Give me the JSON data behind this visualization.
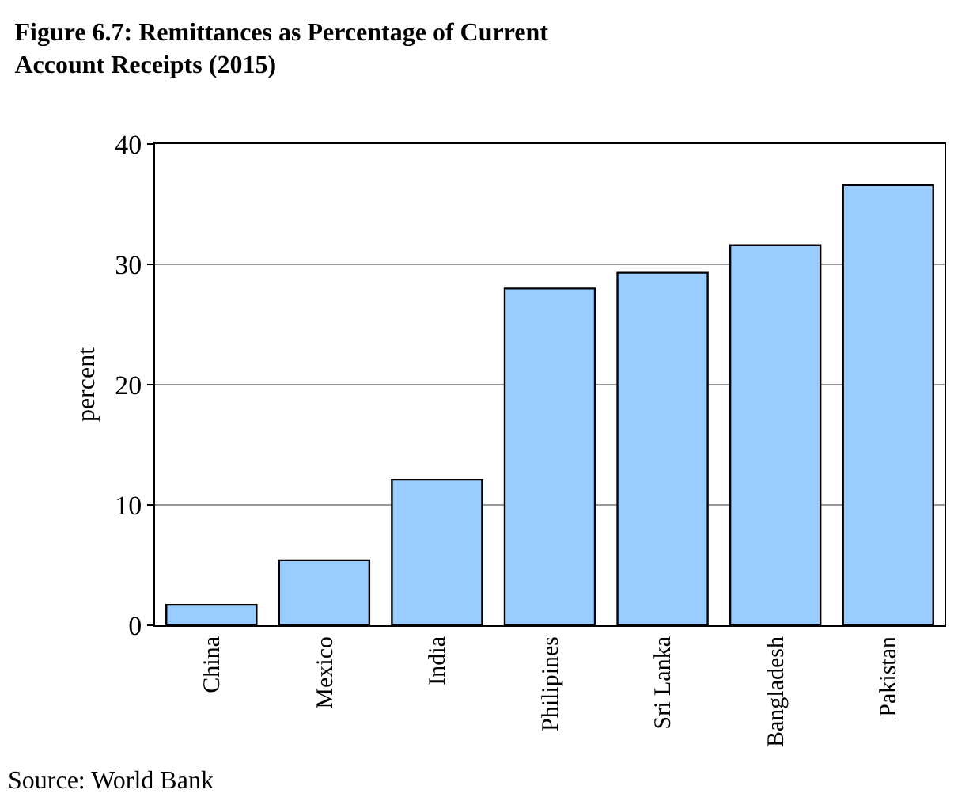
{
  "chart_data": {
    "type": "bar",
    "title": "Figure 6.7: Remittances as Percentage of Current Account Receipts (2015)",
    "ylabel": "percent",
    "categories": [
      "China",
      "Mexico",
      "India",
      "Philipines",
      "Sri Lanka",
      "Bangladesh",
      "Pakistan"
    ],
    "values": [
      1.7,
      5.4,
      12.1,
      28.0,
      29.3,
      31.6,
      36.6
    ],
    "color": "#99ccff",
    "ylim": [
      0,
      40
    ],
    "yticks": [
      0,
      10,
      20,
      30,
      40
    ],
    "grid": "y",
    "legend": false,
    "annotations": [
      "Source: World Bank"
    ]
  }
}
